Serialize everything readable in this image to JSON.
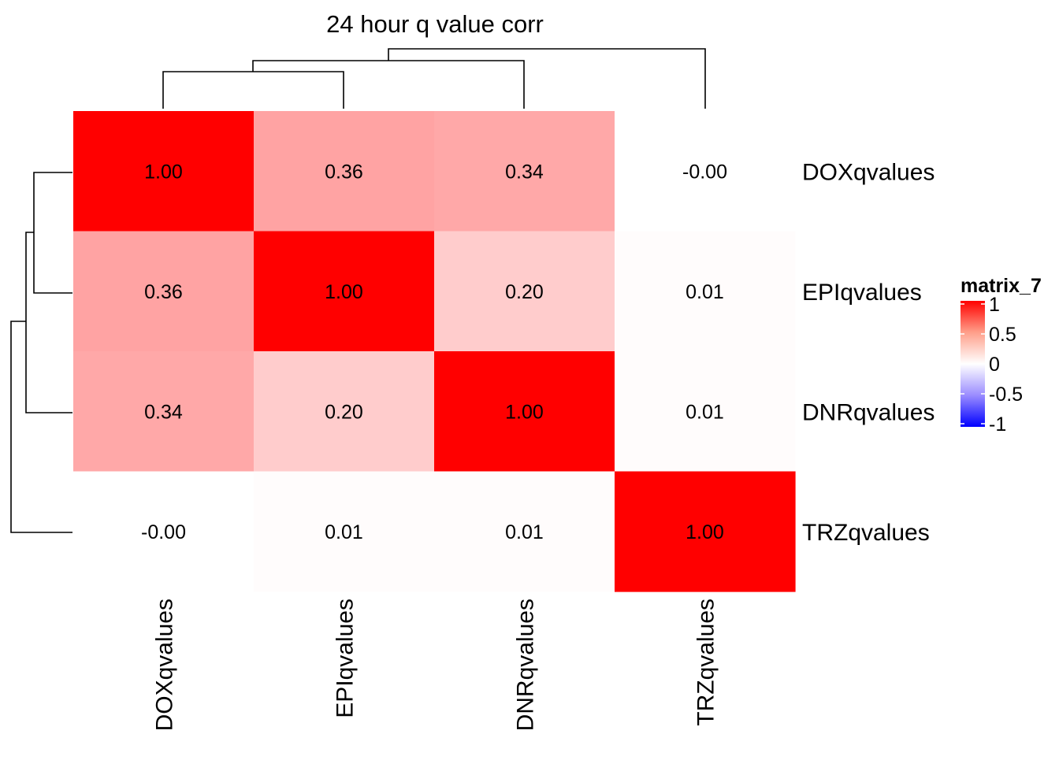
{
  "chart_data": {
    "type": "heatmap",
    "title": "24 hour q value corr",
    "rows": [
      "DOXqvalues",
      "EPIqvalues",
      "DNRqvalues",
      "TRZqvalues"
    ],
    "columns": [
      "DOXqvalues",
      "EPIqvalues",
      "DNRqvalues",
      "TRZqvalues"
    ],
    "cell_labels": [
      [
        "1.00",
        "0.36",
        "0.34",
        "-0.00"
      ],
      [
        "0.36",
        "1.00",
        "0.20",
        "0.01"
      ],
      [
        "0.34",
        "0.20",
        "1.00",
        "0.01"
      ],
      [
        "-0.00",
        "0.01",
        "0.01",
        "1.00"
      ]
    ],
    "values": [
      [
        1.0,
        0.36,
        0.34,
        -0.001
      ],
      [
        0.36,
        1.0,
        0.2,
        0.01
      ],
      [
        0.34,
        0.2,
        1.0,
        0.01
      ],
      [
        -0.001,
        0.01,
        0.01,
        1.0
      ]
    ],
    "row_dendrogram": true,
    "column_dendrogram": true,
    "legend": {
      "title": "matrix_7",
      "ticks": [
        "1",
        "0.5",
        "0",
        "-0.5",
        "-1"
      ],
      "range": [
        -1,
        1
      ],
      "placement": "right"
    },
    "color_scale": {
      "low": "#0000ff",
      "mid": "#ffffff",
      "high": "#ff0000"
    },
    "grid": false
  }
}
